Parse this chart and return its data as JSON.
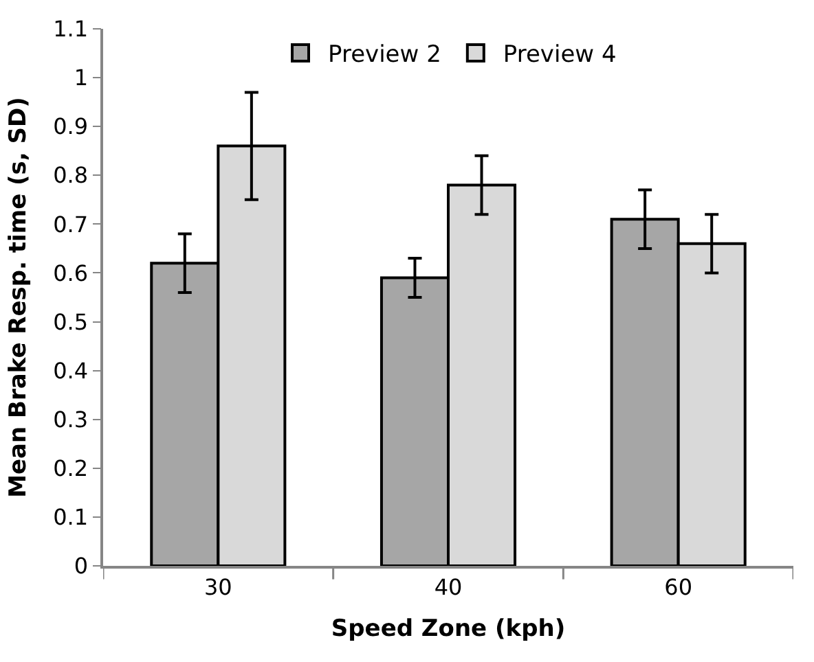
{
  "chart_data": {
    "type": "bar",
    "xlabel": "Speed Zone (kph)",
    "ylabel": "Mean Brake Resp. time (s, SD)",
    "categories": [
      "30",
      "40",
      "60"
    ],
    "series": [
      {
        "name": "Preview 2",
        "color": "#a6a6a6",
        "values": [
          0.62,
          0.59,
          0.71
        ],
        "errors": [
          0.06,
          0.04,
          0.06
        ]
      },
      {
        "name": "Preview 4",
        "color": "#d9d9d9",
        "values": [
          0.86,
          0.78,
          0.66
        ],
        "errors": [
          0.11,
          0.06,
          0.06
        ]
      }
    ],
    "ylim": [
      0,
      1.1
    ],
    "yticks": [
      0,
      0.1,
      0.2,
      0.3,
      0.4,
      0.5,
      0.6,
      0.7,
      0.8,
      0.9,
      1,
      1.1
    ],
    "legend": "top"
  }
}
